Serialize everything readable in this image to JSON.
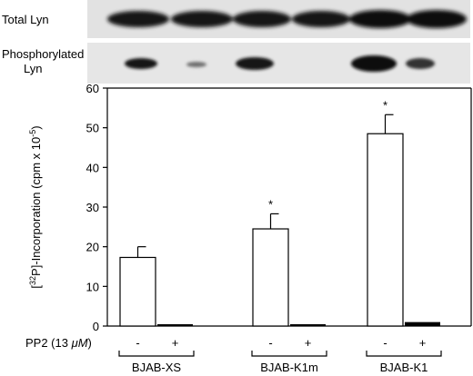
{
  "blots": {
    "total_label": "Total Lyn",
    "phospho_label_line1": "Phosphorylated",
    "phospho_label_line2": "Lyn"
  },
  "treatment": {
    "label_prefix": "PP2 (13 ",
    "label_unit": "μM",
    "label_suffix": ")",
    "signs": [
      "-",
      "+",
      "-",
      "+",
      "-",
      "+"
    ]
  },
  "chart_data": {
    "type": "bar",
    "ylabel_parts": {
      "open": "[",
      "sup1": "32",
      "mid": "P]-Incorporation  (cpm x 10",
      "sup2": "-5",
      "close": ")"
    },
    "ylim": [
      0,
      60
    ],
    "yticks": [
      0,
      10,
      20,
      30,
      40,
      50,
      60
    ],
    "groups": [
      "BJAB-XS",
      "BJAB-K1m",
      "BJAB-K1"
    ],
    "series": [
      {
        "condition": "-",
        "color": "#ffffff",
        "values": [
          17.3,
          24.5,
          48.5
        ],
        "errors": [
          2.7,
          3.8,
          4.8
        ]
      },
      {
        "condition": "+",
        "color": "#000000",
        "values": [
          0.4,
          0.4,
          1.0
        ],
        "errors": [
          0,
          0,
          0
        ]
      }
    ],
    "significance": [
      "",
      "*",
      "*"
    ],
    "grid": false
  }
}
